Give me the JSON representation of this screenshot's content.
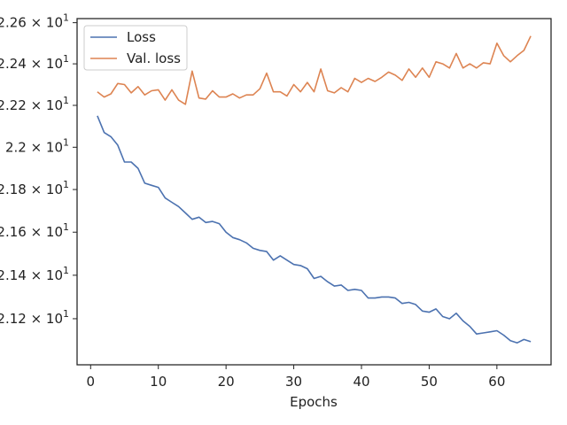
{
  "chart_data": {
    "type": "line",
    "title": "",
    "xlabel": "Epochs",
    "ylabel": "",
    "y_scale": "log",
    "xlim": [
      -2,
      68
    ],
    "ylim": [
      20.99,
      22.62
    ],
    "x_ticks": [
      0,
      10,
      20,
      30,
      40,
      50,
      60
    ],
    "x_tick_labels": [
      "0",
      "10",
      "20",
      "30",
      "40",
      "50",
      "60"
    ],
    "y_ticks": [
      {
        "value": 21.2,
        "mantissa": "2.12",
        "exponent": "1"
      },
      {
        "value": 21.4,
        "mantissa": "2.14",
        "exponent": "1"
      },
      {
        "value": 21.6,
        "mantissa": "2.16",
        "exponent": "1"
      },
      {
        "value": 21.8,
        "mantissa": "2.18",
        "exponent": "1"
      },
      {
        "value": 22.0,
        "mantissa": "2.2",
        "exponent": "1"
      },
      {
        "value": 22.2,
        "mantissa": "2.22",
        "exponent": "1"
      },
      {
        "value": 22.4,
        "mantissa": "2.24",
        "exponent": "1"
      },
      {
        "value": 22.6,
        "mantissa": "2.26",
        "exponent": "1"
      }
    ],
    "y_tick_separator": "×",
    "y_tick_base": "10",
    "grid": false,
    "legend_position": "top-left",
    "x": [
      1,
      2,
      3,
      4,
      5,
      6,
      7,
      8,
      9,
      10,
      11,
      12,
      13,
      14,
      15,
      16,
      17,
      18,
      19,
      20,
      21,
      22,
      23,
      24,
      25,
      26,
      27,
      28,
      29,
      30,
      31,
      32,
      33,
      34,
      35,
      36,
      37,
      38,
      39,
      40,
      41,
      42,
      43,
      44,
      45,
      46,
      47,
      48,
      49,
      50,
      51,
      52,
      53,
      54,
      55,
      56,
      57,
      58,
      59,
      60,
      61,
      62,
      63,
      64,
      65
    ],
    "series": [
      {
        "name": "Loss",
        "color": "#4c72b0",
        "values": [
          22.15,
          22.07,
          22.05,
          22.01,
          21.93,
          21.93,
          21.9,
          21.83,
          21.82,
          21.81,
          21.76,
          21.74,
          21.72,
          21.69,
          21.66,
          21.67,
          21.645,
          21.65,
          21.64,
          21.6,
          21.575,
          21.565,
          21.55,
          21.525,
          21.515,
          21.51,
          21.47,
          21.49,
          21.47,
          21.45,
          21.445,
          21.43,
          21.385,
          21.395,
          21.37,
          21.35,
          21.355,
          21.33,
          21.335,
          21.33,
          21.295,
          21.295,
          21.3,
          21.3,
          21.295,
          21.27,
          21.275,
          21.265,
          21.235,
          21.23,
          21.245,
          21.21,
          21.2,
          21.225,
          21.19,
          21.165,
          21.13,
          21.135,
          21.14,
          21.145,
          21.125,
          21.1,
          21.09,
          21.105,
          21.095
        ]
      },
      {
        "name": "Val. loss",
        "color": "#dd8452",
        "values": [
          22.265,
          22.24,
          22.255,
          22.305,
          22.3,
          22.26,
          22.29,
          22.25,
          22.27,
          22.275,
          22.225,
          22.275,
          22.225,
          22.205,
          22.365,
          22.235,
          22.23,
          22.27,
          22.24,
          22.24,
          22.255,
          22.235,
          22.25,
          22.25,
          22.28,
          22.355,
          22.265,
          22.265,
          22.245,
          22.3,
          22.265,
          22.31,
          22.265,
          22.375,
          22.27,
          22.26,
          22.285,
          22.265,
          22.33,
          22.31,
          22.33,
          22.315,
          22.335,
          22.36,
          22.345,
          22.32,
          22.375,
          22.335,
          22.38,
          22.335,
          22.41,
          22.4,
          22.38,
          22.45,
          22.38,
          22.4,
          22.38,
          22.405,
          22.4,
          22.5,
          22.44,
          22.41,
          22.44,
          22.465,
          22.535
        ]
      }
    ]
  }
}
